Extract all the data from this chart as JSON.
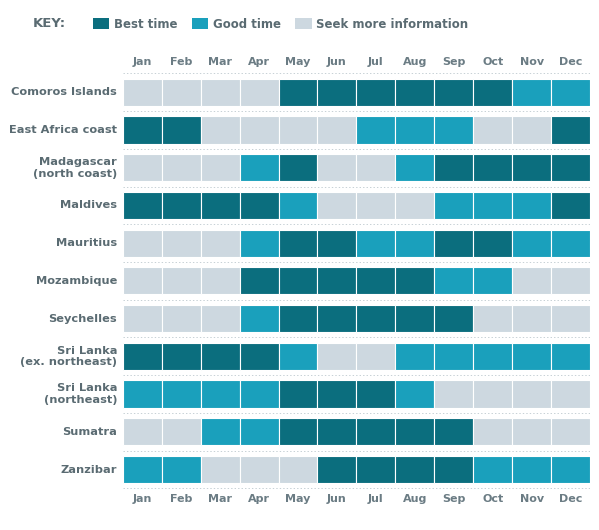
{
  "months": [
    "Jan",
    "Feb",
    "Mar",
    "Apr",
    "May",
    "Jun",
    "Jul",
    "Aug",
    "Sep",
    "Oct",
    "Nov",
    "Dec"
  ],
  "destinations": [
    "Comoros Islands",
    "East Africa coast",
    "Madagascar\n(north coast)",
    "Maldives",
    "Mauritius",
    "Mozambique",
    "Seychelles",
    "Sri Lanka\n(ex. northeast)",
    "Sri Lanka\n(northeast)",
    "Sumatra",
    "Zanzibar"
  ],
  "colors": {
    "best": "#0b6e7e",
    "good": "#1aa0bc",
    "seek": "#cdd8e0"
  },
  "data": {
    "Comoros Islands": [
      "seek",
      "seek",
      "seek",
      "seek",
      "best",
      "best",
      "best",
      "best",
      "best",
      "best",
      "good",
      "good"
    ],
    "East Africa coast": [
      "best",
      "best",
      "seek",
      "seek",
      "seek",
      "seek",
      "good",
      "good",
      "good",
      "seek",
      "seek",
      "best"
    ],
    "Madagascar\n(north coast)": [
      "seek",
      "seek",
      "seek",
      "good",
      "best",
      "seek",
      "seek",
      "good",
      "best",
      "best",
      "best",
      "best"
    ],
    "Maldives": [
      "best",
      "best",
      "best",
      "best",
      "good",
      "seek",
      "seek",
      "seek",
      "good",
      "good",
      "good",
      "best"
    ],
    "Mauritius": [
      "seek",
      "seek",
      "seek",
      "good",
      "best",
      "best",
      "good",
      "good",
      "best",
      "best",
      "good",
      "good"
    ],
    "Mozambique": [
      "seek",
      "seek",
      "seek",
      "best",
      "best",
      "best",
      "best",
      "best",
      "good",
      "good",
      "seek",
      "seek"
    ],
    "Seychelles": [
      "seek",
      "seek",
      "seek",
      "good",
      "best",
      "best",
      "best",
      "best",
      "best",
      "seek",
      "seek",
      "seek"
    ],
    "Sri Lanka\n(ex. northeast)": [
      "best",
      "best",
      "best",
      "best",
      "good",
      "seek",
      "seek",
      "good",
      "good",
      "good",
      "good",
      "good"
    ],
    "Sri Lanka\n(northeast)": [
      "good",
      "good",
      "good",
      "good",
      "best",
      "best",
      "best",
      "good",
      "seek",
      "seek",
      "seek",
      "seek"
    ],
    "Sumatra": [
      "seek",
      "seek",
      "good",
      "good",
      "best",
      "best",
      "best",
      "best",
      "best",
      "seek",
      "seek",
      "seek"
    ],
    "Zanzibar": [
      "good",
      "good",
      "seek",
      "seek",
      "seek",
      "best",
      "best",
      "best",
      "best",
      "good",
      "good",
      "good"
    ]
  },
  "bg_color": "#ffffff",
  "text_color": "#6b7c84",
  "label_color": "#5a6b72",
  "key_label": "KEY:",
  "legend": {
    "best_label": "Best time",
    "good_label": "Good time",
    "seek_label": "Seek more information"
  },
  "figsize": [
    5.99,
    5.3
  ],
  "dpi": 100
}
